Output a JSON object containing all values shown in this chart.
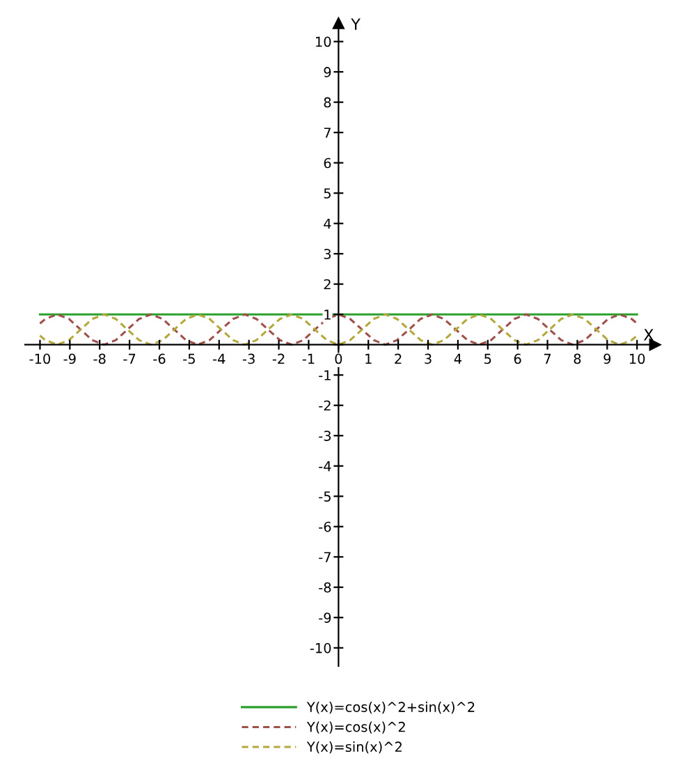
{
  "chart_data": {
    "type": "line",
    "xlabel": "X",
    "ylabel": "Y",
    "x": [
      -10,
      -9.82,
      -9.42,
      -9.03,
      -8.64,
      -8.25,
      -7.85,
      -7.46,
      -7.07,
      -6.68,
      -6.28,
      -5.89,
      -5.5,
      -5.11,
      -4.71,
      -4.32,
      -3.93,
      -3.53,
      -3.14,
      -2.75,
      -2.36,
      -1.96,
      -1.57,
      -1.18,
      -0.79,
      -0.39,
      0,
      0.39,
      0.79,
      1.18,
      1.57,
      1.96,
      2.36,
      2.75,
      3.14,
      3.53,
      3.93,
      4.32,
      4.71,
      5.11,
      5.5,
      5.89,
      6.28,
      6.68,
      7.07,
      7.46,
      7.85,
      8.25,
      8.64,
      9.03,
      9.42,
      9.82,
      10
    ],
    "series": [
      {
        "name": "Y(x)=cos(x)^2+sin(x)^2",
        "color": "#2ca02c",
        "line_style": "solid",
        "values": [
          1,
          1,
          1,
          1,
          1,
          1,
          1,
          1,
          1,
          1,
          1,
          1,
          1,
          1,
          1,
          1,
          1,
          1,
          1,
          1,
          1,
          1,
          1,
          1,
          1,
          1,
          1,
          1,
          1,
          1,
          1,
          1,
          1,
          1,
          1,
          1,
          1,
          1,
          1,
          1,
          1,
          1,
          1,
          1,
          1,
          1,
          1,
          1,
          1,
          1,
          1,
          1,
          1
        ]
      },
      {
        "name": "Y(x)=cos(x)^2",
        "color": "#a0504a",
        "line_style": "dashed",
        "values": [
          0.7,
          0.85,
          1,
          0.85,
          0.5,
          0.15,
          0,
          0.15,
          0.5,
          0.85,
          1,
          0.85,
          0.5,
          0.15,
          0,
          0.15,
          0.5,
          0.85,
          1,
          0.85,
          0.5,
          0.15,
          0,
          0.15,
          0.5,
          0.85,
          1,
          0.85,
          0.5,
          0.15,
          0,
          0.15,
          0.5,
          0.85,
          1,
          0.85,
          0.5,
          0.15,
          0,
          0.15,
          0.5,
          0.85,
          1,
          0.85,
          0.5,
          0.15,
          0,
          0.15,
          0.5,
          0.85,
          1,
          0.85,
          0.7
        ]
      },
      {
        "name": "Y(x)=sin(x)^2",
        "color": "#b4a83c",
        "line_style": "dashed",
        "values": [
          0.3,
          0.15,
          0,
          0.15,
          0.5,
          0.85,
          1,
          0.85,
          0.5,
          0.15,
          0,
          0.15,
          0.5,
          0.85,
          1,
          0.85,
          0.5,
          0.15,
          0,
          0.15,
          0.5,
          0.85,
          1,
          0.85,
          0.5,
          0.15,
          0,
          0.15,
          0.5,
          0.85,
          1,
          0.85,
          0.5,
          0.15,
          0,
          0.15,
          0.5,
          0.85,
          1,
          0.85,
          0.5,
          0.15,
          0,
          0.15,
          0.5,
          0.85,
          1,
          0.85,
          0.5,
          0.15,
          0,
          0.15,
          0.3
        ]
      }
    ],
    "xlim": [
      -10.5,
      10.6
    ],
    "ylim": [
      -10.6,
      10.6
    ],
    "xticks": [
      -10,
      -9,
      -8,
      -7,
      -6,
      -5,
      -4,
      -3,
      -2,
      -1,
      0,
      1,
      2,
      3,
      4,
      5,
      6,
      7,
      8,
      9,
      10
    ],
    "yticks": [
      -10,
      -9,
      -8,
      -7,
      -6,
      -5,
      -4,
      -3,
      -2,
      -1,
      {
        "value": 0,
        "label": null
      },
      1,
      2,
      3,
      4,
      5,
      6,
      7,
      8,
      9,
      10
    ],
    "grid": false,
    "legend": "bottom",
    "marker": "none"
  }
}
